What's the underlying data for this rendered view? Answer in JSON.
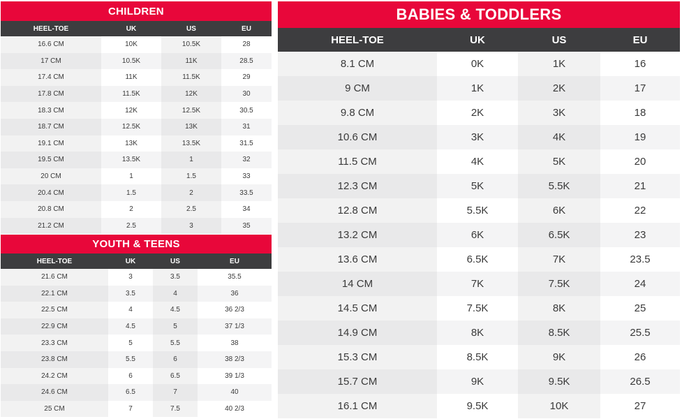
{
  "children": {
    "title": "CHILDREN",
    "headers": [
      "HEEL-TOE",
      "UK",
      "US",
      "EU"
    ],
    "rows": [
      [
        "16.6 CM",
        "10K",
        "10.5K",
        "28"
      ],
      [
        "17 CM",
        "10.5K",
        "11K",
        "28.5"
      ],
      [
        "17.4 CM",
        "11K",
        "11.5K",
        "29"
      ],
      [
        "17.8 CM",
        "11.5K",
        "12K",
        "30"
      ],
      [
        "18.3 CM",
        "12K",
        "12.5K",
        "30.5"
      ],
      [
        "18.7 CM",
        "12.5K",
        "13K",
        "31"
      ],
      [
        "19.1 CM",
        "13K",
        "13.5K",
        "31.5"
      ],
      [
        "19.5 CM",
        "13.5K",
        "1",
        "32"
      ],
      [
        "20 CM",
        "1",
        "1.5",
        "33"
      ],
      [
        "20.4 CM",
        "1.5",
        "2",
        "33.5"
      ],
      [
        "20.8 CM",
        "2",
        "2.5",
        "34"
      ],
      [
        "21.2 CM",
        "2.5",
        "3",
        "35"
      ]
    ]
  },
  "youth": {
    "title": "YOUTH & TEENS",
    "headers": [
      "HEEL-TOE",
      "UK",
      "US",
      "EU"
    ],
    "rows": [
      [
        "21.6 CM",
        "3",
        "3.5",
        "35.5"
      ],
      [
        "22.1 CM",
        "3.5",
        "4",
        "36"
      ],
      [
        "22.5 CM",
        "4",
        "4.5",
        "36 2/3"
      ],
      [
        "22.9 CM",
        "4.5",
        "5",
        "37 1/3"
      ],
      [
        "23.3 CM",
        "5",
        "5.5",
        "38"
      ],
      [
        "23.8 CM",
        "5.5",
        "6",
        "38 2/3"
      ],
      [
        "24.2 CM",
        "6",
        "6.5",
        "39 1/3"
      ],
      [
        "24.6 CM",
        "6.5",
        "7",
        "40"
      ],
      [
        "25 CM",
        "7",
        "7.5",
        "40 2/3"
      ]
    ]
  },
  "babies": {
    "title": "BABIES & TODDLERS",
    "headers": [
      "HEEL-TOE",
      "UK",
      "US",
      "EU"
    ],
    "rows": [
      [
        "8.1 CM",
        "0K",
        "1K",
        "16"
      ],
      [
        "9 CM",
        "1K",
        "2K",
        "17"
      ],
      [
        "9.8 CM",
        "2K",
        "3K",
        "18"
      ],
      [
        "10.6 CM",
        "3K",
        "4K",
        "19"
      ],
      [
        "11.5 CM",
        "4K",
        "5K",
        "20"
      ],
      [
        "12.3 CM",
        "5K",
        "5.5K",
        "21"
      ],
      [
        "12.8 CM",
        "5.5K",
        "6K",
        "22"
      ],
      [
        "13.2 CM",
        "6K",
        "6.5K",
        "23"
      ],
      [
        "13.6 CM",
        "6.5K",
        "7K",
        "23.5"
      ],
      [
        "14 CM",
        "7K",
        "7.5K",
        "24"
      ],
      [
        "14.5 CM",
        "7.5K",
        "8K",
        "25"
      ],
      [
        "14.9 CM",
        "8K",
        "8.5K",
        "25.5"
      ],
      [
        "15.3 CM",
        "8.5K",
        "9K",
        "26"
      ],
      [
        "15.7 CM",
        "9K",
        "9.5K",
        "26.5"
      ],
      [
        "16.1 CM",
        "9.5K",
        "10K",
        "27"
      ]
    ]
  }
}
